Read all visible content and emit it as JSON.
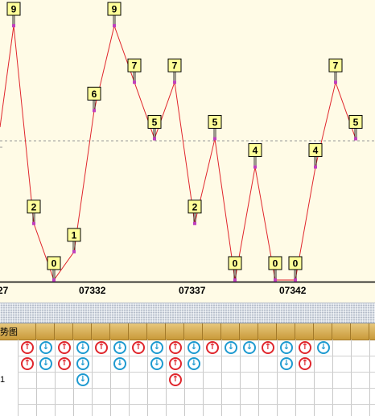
{
  "chart_data": {
    "type": "line",
    "series": [
      {
        "x": [
          1,
          2,
          3,
          4,
          5,
          6,
          7,
          8,
          9,
          10,
          11,
          12,
          13,
          14,
          15,
          16,
          17,
          18
        ],
        "values": [
          9,
          2,
          0,
          1,
          6,
          9,
          7,
          5,
          7,
          2,
          5,
          0,
          4,
          0,
          0,
          4,
          7,
          5
        ]
      }
    ],
    "x_tick_labels": [
      "27",
      "07332",
      "07337",
      "07342"
    ],
    "ylim": [
      0,
      9
    ],
    "line_color": "#e0262c",
    "marker_color": "#c040c0",
    "label_box_color": "#ffff99"
  },
  "grid": {
    "title": "势图",
    "row_label": "1",
    "colors": {
      "up": "#e0262c",
      "down": "#1e9ad0",
      "header": "#d9ab4e"
    },
    "rows": [
      [
        "up",
        "down",
        "up",
        "down",
        "up",
        "down",
        "up",
        "down",
        "up",
        "down",
        "up",
        "down",
        "down",
        "up",
        "down",
        "up",
        "down"
      ],
      [
        "up",
        "down",
        "up",
        "down",
        "",
        "down",
        "",
        "down",
        "up",
        "down",
        "",
        "",
        "",
        "",
        "down",
        "up",
        ""
      ],
      [
        "",
        "",
        "",
        "down",
        "",
        "",
        "",
        "",
        "up",
        "",
        "",
        "",
        "",
        "",
        "",
        "",
        ""
      ]
    ],
    "up_glyph": "↑",
    "down_glyph": "↓"
  }
}
